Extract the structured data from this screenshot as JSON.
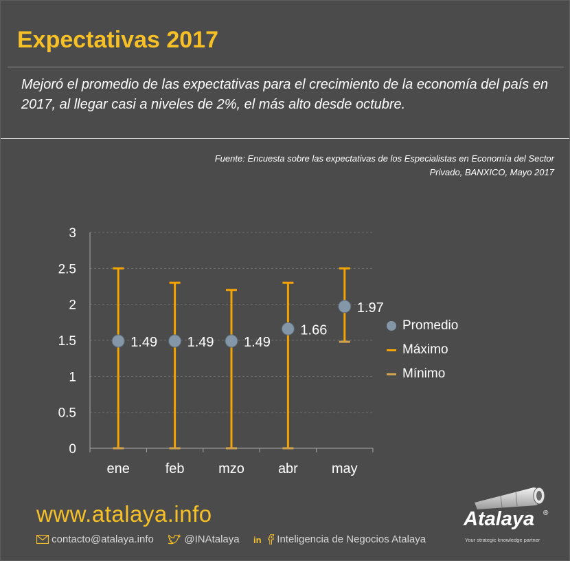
{
  "header": {
    "title": "Expectativas 2017",
    "subtitle": "Mejoró el promedio de las expectativas para el crecimiento de la economía del país en 2017, al llegar casi a niveles de 2%, el más alto desde octubre.",
    "source": "Fuente: Encuesta sobre las expectativas  de los Especialistas en Economía del Sector Privado, BANXICO, Mayo 2017"
  },
  "chart_data": {
    "type": "scatter",
    "categories": [
      "ene",
      "feb",
      "mzo",
      "abr",
      "may"
    ],
    "series": [
      {
        "name": "Promedio",
        "values": [
          1.49,
          1.49,
          1.49,
          1.66,
          1.97
        ],
        "color": "#8497a8"
      },
      {
        "name": "Máximo",
        "values": [
          2.5,
          2.3,
          2.2,
          2.3,
          2.5
        ],
        "color": "#f5a300"
      },
      {
        "name": "Mínimo",
        "values": [
          0.0,
          0.0,
          0.0,
          0.0,
          1.48
        ],
        "color": "#d2a24c"
      }
    ],
    "data_labels": [
      "1.49",
      "1.49",
      "1.49",
      "1.66",
      "1.97"
    ],
    "yticks": [
      "0",
      "0.5",
      "1",
      "1.5",
      "2",
      "2.5",
      "3"
    ],
    "ylim": [
      0,
      3
    ],
    "grid": true,
    "legend_position": "right"
  },
  "footer": {
    "url": "www.atalaya.info",
    "email": "contacto@atalaya.info",
    "twitter": "@INAtalaya",
    "social_name": "Inteligencia de Negocios Atalaya",
    "icons": [
      "envelope-icon",
      "twitter-icon",
      "linkedin-icon",
      "facebook-icon"
    ]
  },
  "logo": {
    "name": "Atalaya",
    "registered": "®",
    "tagline": "Your strategic knowledge partner"
  },
  "colors": {
    "background": "#4b4b4b",
    "accent": "#f6c026",
    "error_bar": "#f5a300",
    "marker": "#8497a8"
  }
}
